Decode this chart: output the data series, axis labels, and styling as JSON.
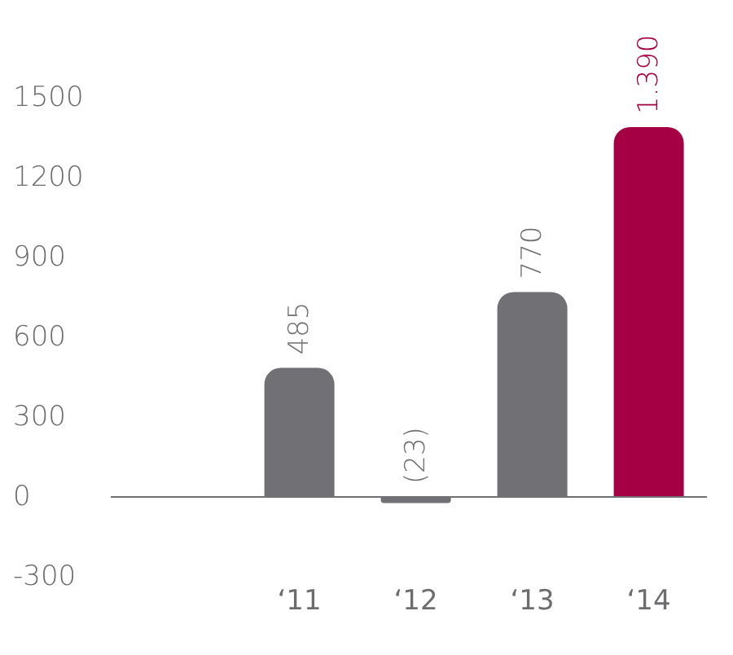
{
  "chart_data": {
    "type": "bar",
    "categories": [
      "‘11",
      "‘12",
      "‘13",
      "‘14"
    ],
    "values": [
      485,
      -23,
      770,
      1390
    ],
    "colors": [
      "#717074",
      "#717074",
      "#717074",
      "#a50044"
    ],
    "value_labels": [
      "485",
      "(23)",
      "770",
      "1.390"
    ],
    "ylim": [
      -300,
      1500
    ],
    "yticks": [
      -300,
      0,
      300,
      600,
      900,
      1200,
      1500
    ],
    "ref_lines": [
      {
        "axis": "y",
        "value": 0,
        "color": "#717074"
      }
    ],
    "grid": false,
    "legend": false
  }
}
